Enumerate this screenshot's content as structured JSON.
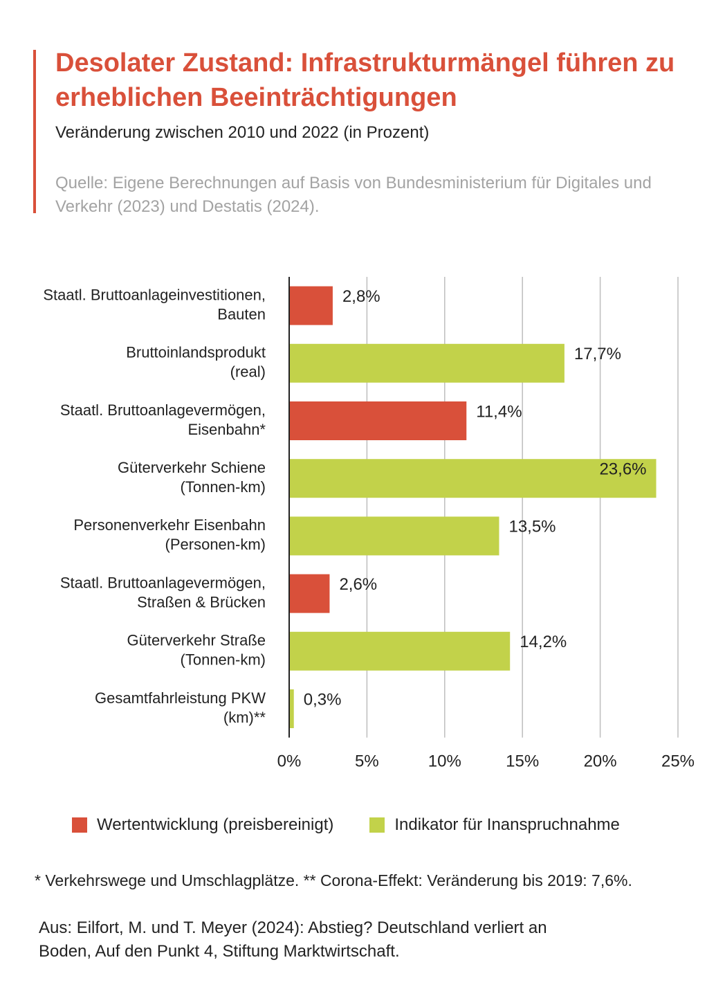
{
  "header": {
    "title": "Desolater Zustand: Infrastrukturmängel führen zu erheblichen Beeinträchtigungen",
    "subtitle": "Veränderung zwischen 2010 und 2022 (in Prozent)",
    "source": "Quelle: Eigene Berechnungen auf Basis von Bundesministerium für Digitales und Verkehr (2023) und Destatis (2024).",
    "accent_color": "#d9503a"
  },
  "chart_data": {
    "type": "bar",
    "orientation": "horizontal",
    "title": "",
    "xlabel": "",
    "ylabel": "",
    "xlim": [
      0,
      25
    ],
    "x_ticks": [
      0,
      5,
      10,
      15,
      20,
      25
    ],
    "x_tick_labels": [
      "0%",
      "5%",
      "10%",
      "15%",
      "20%",
      "25%"
    ],
    "grid": "vertical",
    "legend_position": "bottom",
    "categories": [
      [
        "Staatl. Bruttoanlageinvestitionen,",
        "Bauten"
      ],
      [
        "Bruttoinlandsprodukt",
        "(real)"
      ],
      [
        "Staatl. Bruttoanlagevermögen,",
        "Eisenbahn*"
      ],
      [
        "Güterverkehr Schiene",
        "(Tonnen-km)"
      ],
      [
        "Personenverkehr Eisenbahn",
        "(Personen-km)"
      ],
      [
        "Staatl. Bruttoanlagevermögen,",
        "Straßen & Brücken"
      ],
      [
        "Güterverkehr Straße",
        "(Tonnen-km)"
      ],
      [
        "Gesamtfahrleistung PKW",
        "(km)**"
      ]
    ],
    "values": [
      2.8,
      17.7,
      11.4,
      23.6,
      13.5,
      2.6,
      14.2,
      0.3
    ],
    "value_labels": [
      "2,8%",
      "17,7%",
      "11,4%",
      "23,6%",
      "13,5%",
      "2,6%",
      "14,2%",
      "0,3%"
    ],
    "series_index": [
      0,
      1,
      0,
      1,
      1,
      0,
      1,
      1
    ],
    "series": [
      {
        "name": "Wertentwicklung (preisbereinigt)",
        "color": "#d9503a"
      },
      {
        "name": "Indikator für Inanspruchnahme",
        "color": "#c2d24a"
      }
    ]
  },
  "footnote": "* Verkehrswege und Umschlagplätze. ** Corona-Effekt: Veränderung bis 2019: 7,6%.",
  "citation": {
    "line1": "Aus: Eilfort, M. und T. Meyer (2024): Abstieg? Deutschland verliert an",
    "line2": "Boden, Auf den Punkt 4, Stiftung Marktwirtschaft."
  }
}
